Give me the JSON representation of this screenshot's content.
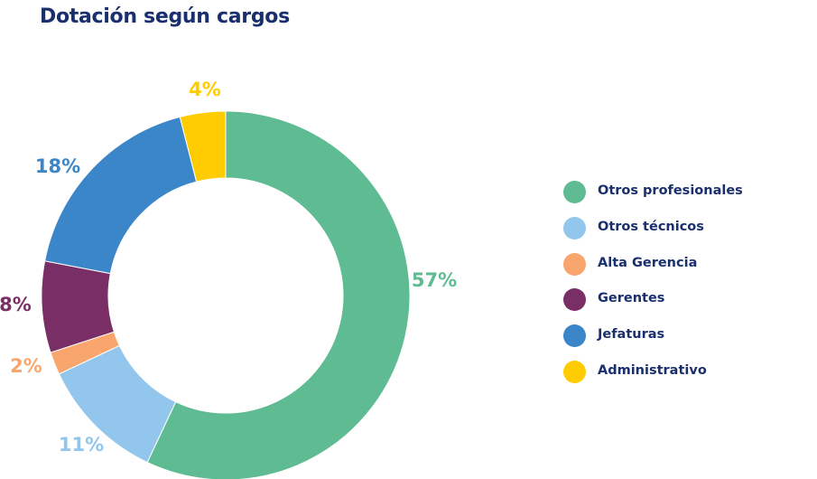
{
  "chart_data": {
    "type": "pie",
    "title": "Dotación según cargos",
    "legend_position": "right",
    "categories": [
      "Otros profesionales",
      "Otros técnicos",
      "Alta Gerencia",
      "Gerentes",
      "Jefaturas",
      "Administrativo"
    ],
    "values": [
      57,
      11,
      2,
      8,
      18,
      4
    ],
    "labels": [
      "57%",
      "11%",
      "2%",
      "8%",
      "18%",
      "4%"
    ],
    "colors": [
      "#5fbb91",
      "#92c6ec",
      "#f9a66e",
      "#7a2e66",
      "#3a86c8",
      "#fecc00"
    ]
  }
}
